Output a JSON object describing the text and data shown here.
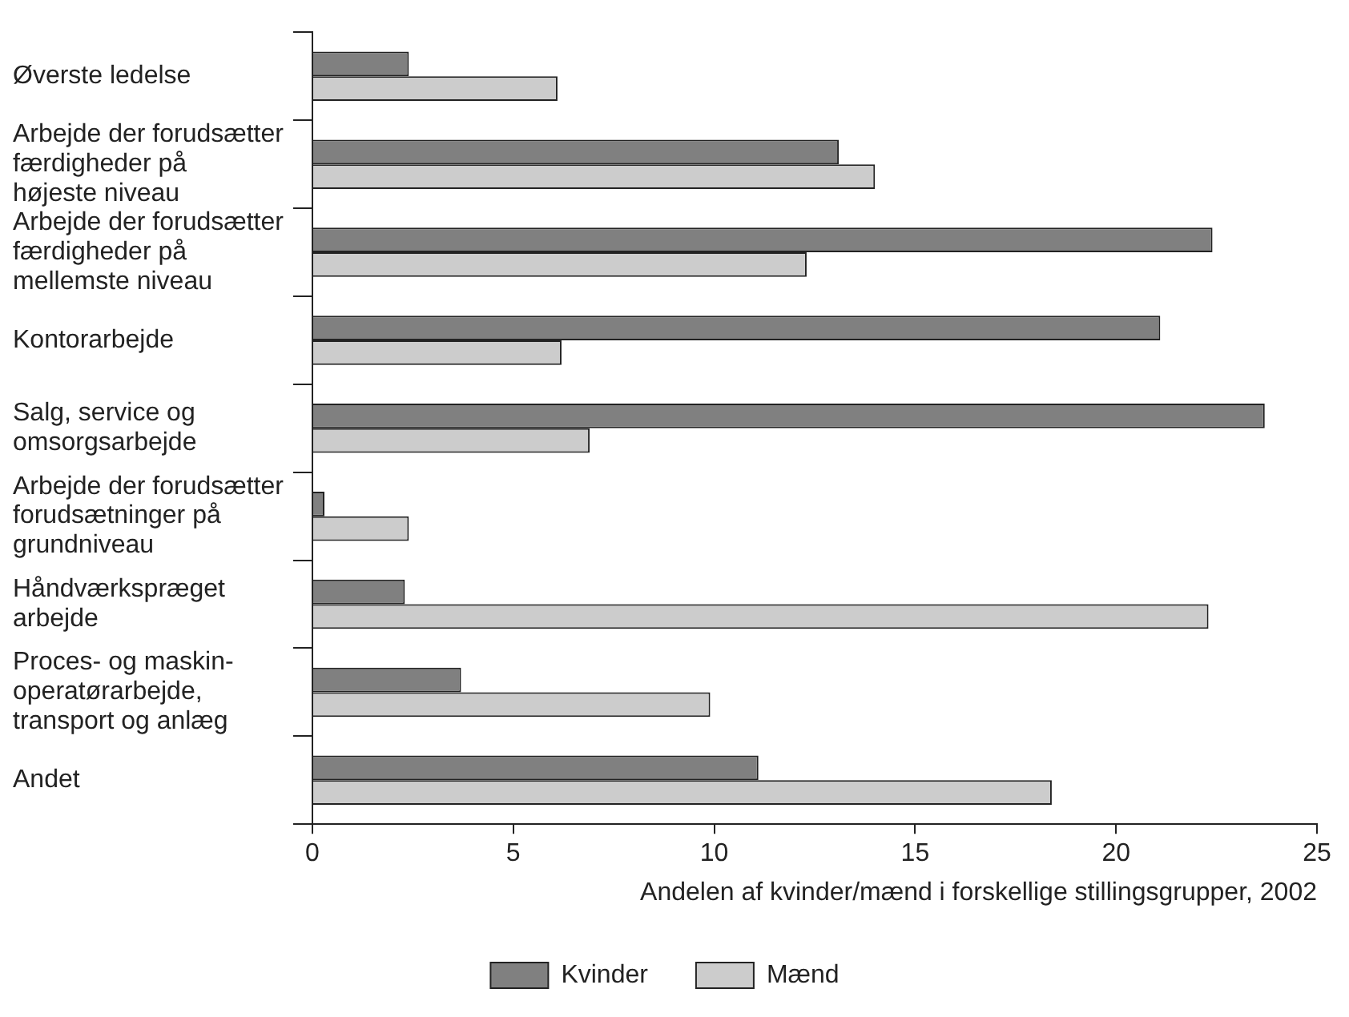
{
  "chart_data": {
    "type": "bar",
    "orientation": "horizontal",
    "xlabel": "Andelen af kvinder/mænd i forskellige stillingsgrupper, 2002",
    "categories": [
      "Øverste ledelse",
      "Arbejde der forudsætter\nfærdigheder på\nhøjeste niveau",
      "Arbejde der forudsætter\nfærdigheder på\nmellemste niveau",
      "Kontorarbejde",
      "Salg, service og\nomsorgsarbejde",
      "Arbejde der forudsætter\nforudsætninger på\ngrundniveau",
      "Håndværkspræget\narbejde",
      "Proces- og maskin-\noperatørarbejde,\ntransport og anlæg",
      "Andet"
    ],
    "series": [
      {
        "name": "Kvinder",
        "color": "#808080",
        "values": [
          2.4,
          13.1,
          22.4,
          21.1,
          23.7,
          0.3,
          2.3,
          3.7,
          11.1
        ]
      },
      {
        "name": "Mænd",
        "color": "#cccccc",
        "values": [
          6.1,
          14.0,
          12.3,
          6.2,
          6.9,
          2.4,
          22.3,
          9.9,
          18.4
        ]
      }
    ],
    "xlim": [
      0,
      25
    ],
    "xticks": [
      0,
      5,
      10,
      15,
      20,
      25
    ],
    "grid": false,
    "legend": "bottom"
  }
}
